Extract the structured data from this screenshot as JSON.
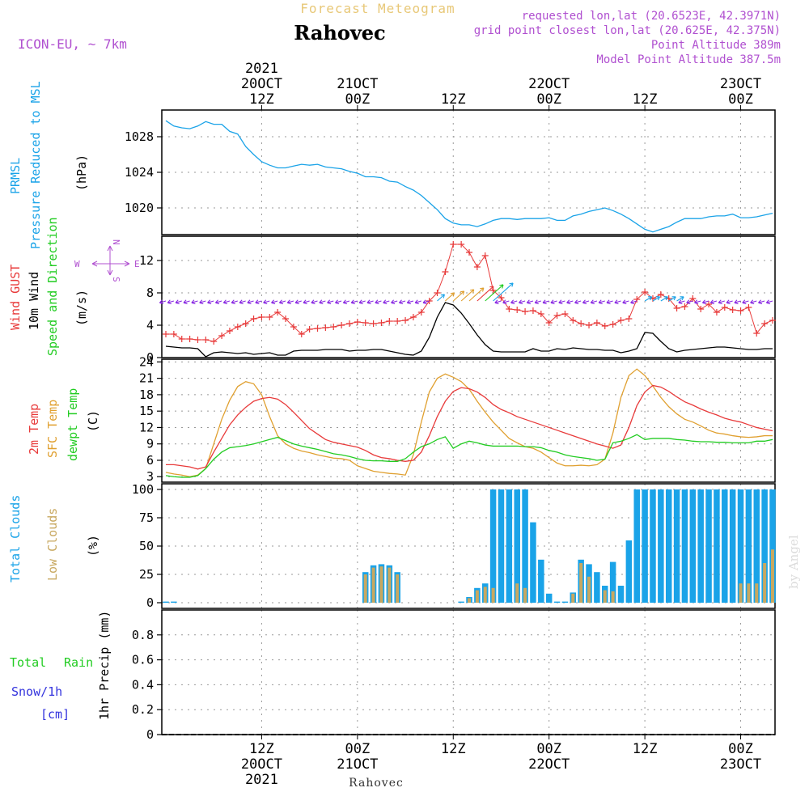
{
  "header": {
    "subtitle": "Forecast Meteogram",
    "location": "Rahovec",
    "model": "ICON-EU, ~ 7km",
    "requested": "requested lon,lat (20.6523E, 42.3971N)",
    "grid_point": "grid point closest lon,lat (20.625E, 42.375N)",
    "point_altitude": "Point Altitude 389m",
    "model_altitude": "Model Point Altitude 387.5m"
  },
  "footer": {
    "location": "Rahovec",
    "credit": "by Angel"
  },
  "colors": {
    "pressure": "#1aa3e8",
    "gust": "#e83a3a",
    "wind": "#000000",
    "sfc_temp": "#e0a030",
    "temp": "#e83a3a",
    "dewpt": "#22cc22",
    "total_clouds": "#1aa3e8",
    "low_clouds": "#c8a860",
    "rain": "#22cc22",
    "snow": "#3333dd",
    "info": "#b050d0",
    "wind_arrow": "#8a2be2"
  },
  "time_axis": {
    "top_labels": [
      {
        "x": 12,
        "lines": [
          "2021",
          "20OCT",
          "12Z"
        ]
      },
      {
        "x": 24,
        "lines": [
          "21OCT",
          "00Z"
        ]
      },
      {
        "x": 36,
        "lines": [
          "12Z"
        ]
      },
      {
        "x": 48,
        "lines": [
          "22OCT",
          "00Z"
        ]
      },
      {
        "x": 60,
        "lines": [
          "12Z"
        ]
      },
      {
        "x": 72,
        "lines": [
          "23OCT",
          "00Z"
        ]
      }
    ],
    "bottom_labels": [
      {
        "x": 12,
        "lines": [
          "12Z",
          "20OCT",
          "2021"
        ]
      },
      {
        "x": 24,
        "lines": [
          "00Z",
          "21OCT"
        ]
      },
      {
        "x": 36,
        "lines": [
          "12Z"
        ]
      },
      {
        "x": 48,
        "lines": [
          "00Z",
          "22OCT"
        ]
      },
      {
        "x": 60,
        "lines": [
          "12Z"
        ]
      },
      {
        "x": 72,
        "lines": [
          "00Z",
          "23OCT"
        ]
      }
    ],
    "hour_range": [
      0,
      76
    ]
  },
  "panels": {
    "pressure": {
      "labels": [
        "PRMSL",
        "Pressure Reduced to MSL"
      ],
      "unit": "(hPa)",
      "ticks": [
        "1028",
        "1024",
        "1020"
      ]
    },
    "wind": {
      "labels": [
        "Wind GUST",
        "10m Wind",
        "Speed and Direction"
      ],
      "unit": "(m/s)",
      "compass": {
        "n": "N",
        "s": "S",
        "w": "W",
        "e": "E"
      },
      "ticks": [
        "12",
        "8",
        "4",
        "0"
      ]
    },
    "temperature": {
      "labels": [
        "2m Temp",
        "SFC Temp",
        "dewpt Temp"
      ],
      "unit": "(C)",
      "ticks": [
        "24",
        "21",
        "18",
        "15",
        "12",
        "9",
        "6",
        "3"
      ]
    },
    "clouds": {
      "labels": [
        "Total Clouds",
        "Low Clouds"
      ],
      "unit": "(%)",
      "ticks": [
        "100",
        "75",
        "50",
        "25",
        "0"
      ]
    },
    "precip": {
      "labels": [
        "Total",
        "Rain",
        "Snow/1h",
        "[cm]"
      ],
      "unit": "1hr Precip (mm)",
      "ticks": [
        "0.8",
        "0.6",
        "0.4",
        "0.2",
        "0"
      ]
    }
  },
  "chart_data": [
    {
      "type": "line",
      "name": "pressure",
      "x": [
        0,
        1,
        2,
        3,
        4,
        5,
        6,
        7,
        8,
        9,
        10,
        11,
        12,
        13,
        14,
        15,
        16,
        17,
        18,
        19,
        20,
        21,
        22,
        23,
        24,
        25,
        26,
        27,
        28,
        29,
        30,
        31,
        32,
        33,
        34,
        35,
        36,
        37,
        38,
        39,
        40,
        41,
        42,
        43,
        44,
        45,
        46,
        47,
        48,
        49,
        50,
        51,
        52,
        53,
        54,
        55,
        56,
        57,
        58,
        59,
        60,
        61,
        62,
        63,
        64,
        65,
        66,
        67,
        68,
        69,
        70,
        71,
        72,
        73,
        74,
        75,
        76
      ],
      "values": [
        1029.8,
        1029.2,
        1029.0,
        1028.9,
        1029.2,
        1029.7,
        1029.4,
        1029.4,
        1028.6,
        1028.3,
        1026.9,
        1026.0,
        1025.2,
        1024.8,
        1024.5,
        1024.5,
        1024.7,
        1024.9,
        1024.8,
        1024.9,
        1024.6,
        1024.5,
        1024.4,
        1024.1,
        1023.9,
        1023.5,
        1023.5,
        1023.4,
        1023.0,
        1022.9,
        1022.4,
        1022.0,
        1021.4,
        1020.6,
        1019.8,
        1018.8,
        1018.3,
        1018.1,
        1018.1,
        1017.9,
        1018.2,
        1018.6,
        1018.8,
        1018.8,
        1018.7,
        1018.8,
        1018.8,
        1018.8,
        1018.9,
        1018.6,
        1018.6,
        1019.1,
        1019.3,
        1019.6,
        1019.8,
        1020.0,
        1019.7,
        1019.3,
        1018.8,
        1018.2,
        1017.6,
        1017.3,
        1017.6,
        1017.9,
        1018.4,
        1018.8,
        1018.8,
        1018.8,
        1019.0,
        1019.1,
        1019.1,
        1019.3,
        1018.9,
        1018.9,
        1019.0,
        1019.2,
        1019.4
      ],
      "ylim": [
        1017,
        1031
      ],
      "ylabel": "(hPa)"
    },
    {
      "type": "line",
      "name": "wind",
      "x": [
        0,
        1,
        2,
        3,
        4,
        5,
        6,
        7,
        8,
        9,
        10,
        11,
        12,
        13,
        14,
        15,
        16,
        17,
        18,
        19,
        20,
        21,
        22,
        23,
        24,
        25,
        26,
        27,
        28,
        29,
        30,
        31,
        32,
        33,
        34,
        35,
        36,
        37,
        38,
        39,
        40,
        41,
        42,
        43,
        44,
        45,
        46,
        47,
        48,
        49,
        50,
        51,
        52,
        53,
        54,
        55,
        56,
        57,
        58,
        59,
        60,
        61,
        62,
        63,
        64,
        65,
        66,
        67,
        68,
        69,
        70,
        71,
        72,
        73,
        74,
        75,
        76
      ],
      "ylim": [
        0,
        15
      ],
      "ylabel": "(m/s)",
      "series": [
        {
          "name": "Wind GUST",
          "values": [
            2.9,
            2.9,
            2.3,
            2.3,
            2.2,
            2.2,
            2.0,
            2.7,
            3.3,
            3.8,
            4.2,
            4.8,
            5.0,
            5.0,
            5.6,
            4.8,
            3.8,
            2.9,
            3.5,
            3.6,
            3.7,
            3.8,
            4.0,
            4.2,
            4.4,
            4.3,
            4.2,
            4.3,
            4.5,
            4.5,
            4.6,
            5.0,
            5.6,
            7.0,
            8.0,
            10.6,
            14.0,
            14.0,
            13.0,
            11.2,
            12.6,
            8.3,
            7.4,
            6.0,
            5.9,
            5.7,
            5.8,
            5.4,
            4.3,
            5.2,
            5.4,
            4.6,
            4.2,
            4.0,
            4.3,
            3.9,
            4.1,
            4.6,
            4.8,
            7.2,
            8.1,
            7.3,
            7.8,
            7.3,
            6.1,
            6.3,
            7.3,
            6.0,
            6.6,
            5.6,
            6.2,
            5.9,
            5.8,
            6.2,
            3.0,
            4.2,
            4.6
          ]
        },
        {
          "name": "10m Wind",
          "values": [
            1.4,
            1.3,
            1.2,
            1.2,
            1.1,
            0.1,
            0.6,
            0.7,
            0.6,
            0.5,
            0.6,
            0.4,
            0.5,
            0.6,
            0.3,
            0.3,
            0.8,
            0.9,
            0.9,
            0.9,
            1.0,
            1.0,
            1.0,
            0.8,
            0.9,
            0.9,
            1.0,
            1.0,
            0.8,
            0.6,
            0.4,
            0.3,
            0.8,
            2.5,
            5.0,
            6.8,
            6.5,
            5.5,
            4.2,
            2.8,
            1.6,
            0.8,
            0.7,
            0.7,
            0.7,
            0.7,
            1.1,
            0.8,
            0.8,
            1.1,
            1.0,
            1.2,
            1.1,
            1.0,
            1.0,
            0.9,
            0.9,
            0.6,
            0.8,
            1.1,
            3.1,
            3.0,
            2.0,
            1.1,
            0.7,
            0.9,
            1.0,
            1.1,
            1.2,
            1.3,
            1.3,
            1.2,
            1.1,
            1.0,
            1.0,
            1.1,
            1.1
          ]
        }
      ],
      "direction_row_y": 7.0,
      "annotations": [
        "N",
        "S",
        "W",
        "E"
      ]
    },
    {
      "type": "line",
      "name": "temperature",
      "x": [
        0,
        1,
        2,
        3,
        4,
        5,
        6,
        7,
        8,
        9,
        10,
        11,
        12,
        13,
        14,
        15,
        16,
        17,
        18,
        19,
        20,
        21,
        22,
        23,
        24,
        25,
        26,
        27,
        28,
        29,
        30,
        31,
        32,
        33,
        34,
        35,
        36,
        37,
        38,
        39,
        40,
        41,
        42,
        43,
        44,
        45,
        46,
        47,
        48,
        49,
        50,
        51,
        52,
        53,
        54,
        55,
        56,
        57,
        58,
        59,
        60,
        61,
        62,
        63,
        64,
        65,
        66,
        67,
        68,
        69,
        70,
        71,
        72,
        73,
        74,
        75,
        76
      ],
      "ylim": [
        2,
        24.5
      ],
      "ylabel": "(C)",
      "series": [
        {
          "name": "2m Temp",
          "values": [
            5.2,
            5.2,
            5.0,
            4.8,
            4.4,
            4.8,
            7.5,
            10.0,
            12.5,
            14.3,
            15.7,
            16.8,
            17.3,
            17.5,
            17.2,
            16.2,
            14.8,
            13.3,
            11.8,
            10.8,
            9.8,
            9.3,
            9.0,
            8.7,
            8.4,
            7.8,
            7.0,
            6.5,
            6.3,
            6.0,
            5.8,
            6.0,
            7.5,
            10.5,
            14.0,
            16.8,
            18.6,
            19.3,
            19.1,
            18.5,
            17.5,
            16.2,
            15.3,
            14.7,
            14.0,
            13.5,
            13.0,
            12.5,
            12.0,
            11.5,
            11.0,
            10.5,
            10.0,
            9.5,
            9.0,
            8.6,
            8.2,
            8.8,
            12.0,
            16.0,
            18.5,
            19.7,
            19.4,
            18.6,
            17.6,
            16.7,
            16.1,
            15.4,
            14.8,
            14.3,
            13.7,
            13.3,
            13.0,
            12.5,
            12.0,
            11.7,
            11.4
          ]
        },
        {
          "name": "SFC Temp",
          "values": [
            3.8,
            3.5,
            3.3,
            3.0,
            3.3,
            4.5,
            9.0,
            13.5,
            17.0,
            19.5,
            20.4,
            20.0,
            18.0,
            14.0,
            10.5,
            9.0,
            8.2,
            7.7,
            7.4,
            7.0,
            6.7,
            6.4,
            6.3,
            6.0,
            5.0,
            4.5,
            4.0,
            3.8,
            3.6,
            3.5,
            3.3,
            7.0,
            13.0,
            18.5,
            21.0,
            21.8,
            21.2,
            20.4,
            19.0,
            16.8,
            14.8,
            13.0,
            11.5,
            10.0,
            9.2,
            8.5,
            8.2,
            7.5,
            6.5,
            5.5,
            5.0,
            5.0,
            5.1,
            5.0,
            5.2,
            6.2,
            11.0,
            17.5,
            21.5,
            22.7,
            21.5,
            19.6,
            17.5,
            15.8,
            14.5,
            13.5,
            13.0,
            12.3,
            11.5,
            11.0,
            10.8,
            10.5,
            10.3,
            10.2,
            10.3,
            10.5,
            10.5
          ]
        },
        {
          "name": "dewpt Temp",
          "values": [
            3.2,
            3.0,
            2.9,
            2.9,
            3.2,
            4.5,
            6.2,
            7.5,
            8.3,
            8.5,
            8.7,
            9.0,
            9.4,
            9.8,
            10.2,
            9.6,
            9.0,
            8.6,
            8.3,
            8.0,
            7.6,
            7.2,
            7.0,
            6.7,
            6.3,
            6.0,
            5.9,
            5.9,
            5.8,
            5.8,
            6.3,
            7.5,
            8.5,
            9.0,
            9.8,
            10.3,
            8.2,
            9.0,
            9.5,
            9.2,
            8.8,
            8.6,
            8.6,
            8.6,
            8.6,
            8.5,
            8.5,
            8.3,
            7.8,
            7.5,
            7.0,
            6.7,
            6.5,
            6.3,
            6.0,
            6.2,
            9.2,
            9.5,
            10.0,
            10.7,
            9.8,
            10.0,
            10.0,
            10.0,
            9.8,
            9.7,
            9.5,
            9.4,
            9.4,
            9.3,
            9.3,
            9.2,
            9.2,
            9.2,
            9.5,
            9.5,
            9.8
          ]
        }
      ]
    },
    {
      "type": "bar",
      "name": "clouds",
      "x": [
        0,
        1,
        2,
        3,
        4,
        5,
        6,
        7,
        8,
        9,
        10,
        11,
        12,
        13,
        14,
        15,
        16,
        17,
        18,
        19,
        20,
        21,
        22,
        23,
        24,
        25,
        26,
        27,
        28,
        29,
        30,
        31,
        32,
        33,
        34,
        35,
        36,
        37,
        38,
        39,
        40,
        41,
        42,
        43,
        44,
        45,
        46,
        47,
        48,
        49,
        50,
        51,
        52,
        53,
        54,
        55,
        56,
        57,
        58,
        59,
        60,
        61,
        62,
        63,
        64,
        65,
        66,
        67,
        68,
        69,
        70,
        71,
        72,
        73,
        74,
        75,
        76
      ],
      "ylim": [
        -5,
        105
      ],
      "ylabel": "(%)",
      "series": [
        {
          "name": "Total Clouds",
          "values": [
            1,
            1,
            0,
            0,
            0,
            0,
            0,
            0,
            0,
            0,
            0,
            0,
            0,
            0,
            0,
            0,
            0,
            0,
            0,
            0,
            0,
            0,
            0,
            0,
            0,
            27,
            33,
            34,
            33,
            27,
            0,
            0,
            0,
            0,
            0,
            0,
            0,
            1,
            5,
            13,
            17,
            100,
            100,
            100,
            100,
            100,
            71,
            38,
            8,
            1,
            1,
            9,
            38,
            34,
            27,
            15,
            36,
            15,
            55,
            100,
            100,
            100,
            100,
            100,
            100,
            100,
            100,
            100,
            100,
            100,
            100,
            100,
            100,
            100,
            100,
            100,
            100
          ]
        },
        {
          "name": "Low Clouds",
          "values": [
            0,
            0,
            0,
            0,
            0,
            0,
            0,
            0,
            0,
            0,
            0,
            0,
            0,
            0,
            0,
            0,
            0,
            0,
            0,
            0,
            0,
            0,
            0,
            0,
            0,
            25,
            31,
            32,
            31,
            25,
            0,
            0,
            0,
            0,
            0,
            0,
            0,
            0,
            4,
            11,
            14,
            13,
            0,
            0,
            17,
            13,
            0,
            0,
            0,
            0,
            0,
            8,
            35,
            23,
            0,
            11,
            10,
            0,
            0,
            0,
            0,
            0,
            0,
            0,
            0,
            0,
            0,
            0,
            0,
            0,
            0,
            0,
            17,
            17,
            17,
            35,
            47
          ]
        }
      ]
    },
    {
      "type": "line",
      "name": "precip",
      "x": [
        0,
        76
      ],
      "ylim": [
        0,
        1.0
      ],
      "ylabel": "1hr Precip (mm)",
      "series": [
        {
          "name": "Total Rain",
          "values": [
            0,
            0
          ]
        },
        {
          "name": "Snow/1h",
          "values": [
            0,
            0
          ]
        }
      ]
    }
  ]
}
